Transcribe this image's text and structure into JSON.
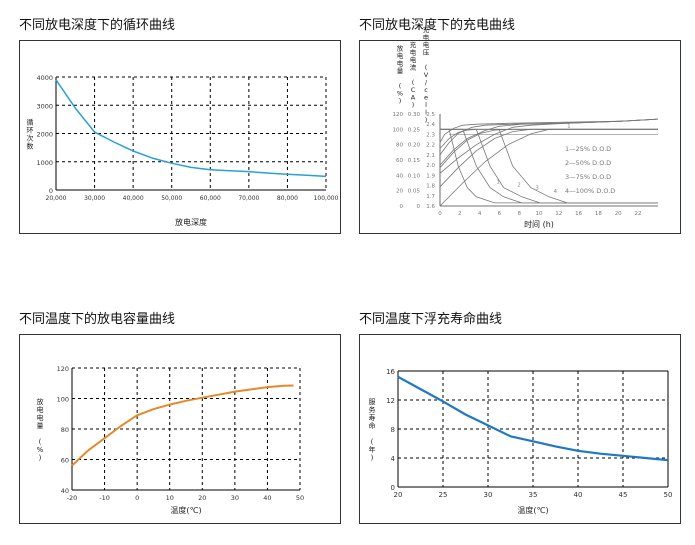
{
  "charts": {
    "cycle": {
      "heading": "不同放电深度下的循环曲线",
      "chart_data": {
        "type": "line",
        "ylabel": "循环次数",
        "xlabel": "放电深度",
        "y_ticks": [
          "0",
          "1000",
          "2000",
          "3000",
          "4000"
        ],
        "x_ticks": [
          "20,000",
          "30,000",
          "40,000",
          "50,000",
          "60,000",
          "70,000",
          "80,000",
          "100,000"
        ],
        "xlim": [
          0,
          7
        ],
        "ylim": [
          0,
          4000
        ],
        "grid": true,
        "series": [
          {
            "x": [
              0,
              0.5,
              1.0,
              1.5,
              2.0,
              2.5,
              3.0,
              3.5,
              4.0,
              4.5,
              5.0,
              5.5,
              6.0,
              6.5,
              7.0
            ],
            "y": [
              3900,
              2900,
              2050,
              1700,
              1380,
              1130,
              950,
              800,
              720,
              680,
              650,
              600,
              560,
              520,
              480
            ]
          }
        ],
        "colors": {
          "line": "#2aa0d8"
        }
      }
    },
    "charge": {
      "heading": "不同放电深度下的充电曲线",
      "chart_data": {
        "type": "line",
        "xlabel": "时间 (h)",
        "y1label": "放电电量 (%)",
        "y2label": "充电电流 (CA)",
        "y3label": "充电电压 (V/cell)",
        "x_ticks": [
          "0",
          "2",
          "4",
          "6",
          "8",
          "10",
          "12",
          "16",
          "18",
          "20",
          "22"
        ],
        "y1_ticks": [
          "0",
          "20",
          "40",
          "60",
          "80",
          "100",
          "120"
        ],
        "y2_ticks": [
          "0",
          "0.05",
          "0.10",
          "0.15",
          "0.20",
          "0.25",
          "0.30"
        ],
        "y3_ticks": [
          "1.6",
          "1.7",
          "1.8",
          "1.9",
          "2.0",
          "2.1",
          "2.2",
          "2.3",
          "2.4",
          "2.5"
        ],
        "legend": [
          "1—25% D.O.D",
          "2—50% D.O.D",
          "3—75% D.O.D",
          "4—100% D.O.D"
        ],
        "curve_labels": [
          "1",
          "2",
          "3",
          "4"
        ],
        "xlim": [
          0,
          24
        ],
        "ylim": [
          0,
          120
        ],
        "grid": false,
        "voltage_series": [
          {
            "name": "1",
            "x": [
              0,
              0.5,
              1.5,
              2.5,
              4,
              8,
              14,
              20,
              24
            ],
            "y": [
              2.22,
              2.3,
              2.36,
              2.39,
              2.4,
              2.41,
              2.42,
              2.43,
              2.45
            ]
          },
          {
            "name": "2",
            "x": [
              0,
              1,
              2,
              3.5,
              5,
              8,
              14,
              20,
              24
            ],
            "y": [
              2.1,
              2.22,
              2.31,
              2.37,
              2.39,
              2.4,
              2.41,
              2.43,
              2.45
            ]
          },
          {
            "name": "3",
            "x": [
              0,
              1.5,
              3,
              5,
              6.5,
              9,
              14,
              20,
              24
            ],
            "y": [
              2.0,
              2.15,
              2.26,
              2.34,
              2.38,
              2.4,
              2.41,
              2.43,
              2.45
            ]
          },
          {
            "name": "4",
            "x": [
              0,
              2,
              4,
              6,
              8,
              10,
              14,
              20,
              24
            ],
            "y": [
              1.92,
              2.07,
              2.2,
              2.3,
              2.37,
              2.39,
              2.41,
              2.43,
              2.45
            ]
          }
        ],
        "capacity_series": [
          {
            "name": "1",
            "x": [
              0,
              1,
              2,
              3,
              4,
              6,
              24
            ],
            "y": [
              75,
              88,
              96,
              99,
              100,
              100,
              100
            ]
          },
          {
            "name": "2",
            "x": [
              0,
              1.5,
              3,
              4.5,
              6,
              8,
              24
            ],
            "y": [
              50,
              70,
              86,
              95,
              99,
              100,
              100
            ]
          },
          {
            "name": "3",
            "x": [
              0,
              2,
              4,
              6,
              8,
              10,
              24
            ],
            "y": [
              25,
              50,
              72,
              88,
              97,
              100,
              100
            ]
          },
          {
            "name": "4",
            "x": [
              0,
              2.5,
              5,
              7.5,
              10,
              12,
              24
            ],
            "y": [
              0,
              30,
              58,
              80,
              94,
              100,
              100
            ]
          }
        ],
        "current_series": [
          {
            "name": "1",
            "x": [
              0,
              1,
              2,
              3,
              4,
              6,
              24
            ],
            "y": [
              0.25,
              0.25,
              0.13,
              0.06,
              0.03,
              0.01,
              0.01
            ]
          },
          {
            "name": "2",
            "x": [
              0,
              2.5,
              4,
              5.5,
              7,
              9,
              24
            ],
            "y": [
              0.25,
              0.25,
              0.13,
              0.06,
              0.03,
              0.01,
              0.01
            ]
          },
          {
            "name": "3",
            "x": [
              0,
              4,
              5.5,
              7,
              9,
              11,
              24
            ],
            "y": [
              0.25,
              0.25,
              0.13,
              0.06,
              0.03,
              0.01,
              0.01
            ]
          },
          {
            "name": "4",
            "x": [
              0,
              6.5,
              8,
              10,
              12,
              14,
              24
            ],
            "y": [
              0.25,
              0.25,
              0.13,
              0.06,
              0.03,
              0.01,
              0.01
            ]
          }
        ],
        "colors": {
          "line": "#777777"
        }
      }
    },
    "capacity": {
      "heading": "不同温度下的放电容量曲线",
      "chart_data": {
        "type": "line",
        "ylabel": "放电电量 (%)",
        "xlabel": "温度(℃)",
        "y_ticks": [
          "40",
          "60",
          "80",
          "100",
          "120"
        ],
        "x_ticks": [
          "-20",
          "-10",
          "0",
          "10",
          "20",
          "30",
          "40",
          "50"
        ],
        "xlim": [
          -20,
          50
        ],
        "ylim": [
          40,
          120
        ],
        "grid": true,
        "series": [
          {
            "x": [
              -20,
              -15,
              -10,
              -5,
              0,
              5,
              10,
              15,
              20,
              25,
              30,
              35,
              40,
              45,
              48
            ],
            "y": [
              56,
              66,
              74,
              82,
              89,
              93,
              96,
              98.5,
              100.5,
              102.5,
              104.5,
              106,
              107.5,
              108.3,
              108.5
            ]
          }
        ],
        "colors": {
          "line": "#e38a2c"
        }
      }
    },
    "float": {
      "heading": "不同温度下浮充寿命曲线",
      "chart_data": {
        "type": "line",
        "ylabel": "服务寿命 (年)",
        "xlabel": "温度(℃)",
        "y_ticks": [
          "0",
          "4",
          "8",
          "12",
          "16"
        ],
        "x_ticks": [
          "20",
          "25",
          "30",
          "35",
          "40",
          "45",
          "50"
        ],
        "xlim": [
          20,
          50
        ],
        "ylim": [
          0,
          16
        ],
        "grid": true,
        "series": [
          {
            "x": [
              20,
              22.5,
              25,
              27.5,
              30,
              32.5,
              35,
              37.5,
              40,
              42.5,
              45,
              47.5,
              50
            ],
            "y": [
              15.2,
              13.5,
              11.8,
              10.0,
              8.5,
              7.0,
              6.3,
              5.6,
              5.0,
              4.6,
              4.3,
              4.0,
              3.7
            ]
          }
        ],
        "colors": {
          "line": "#1f78c1"
        }
      }
    }
  }
}
